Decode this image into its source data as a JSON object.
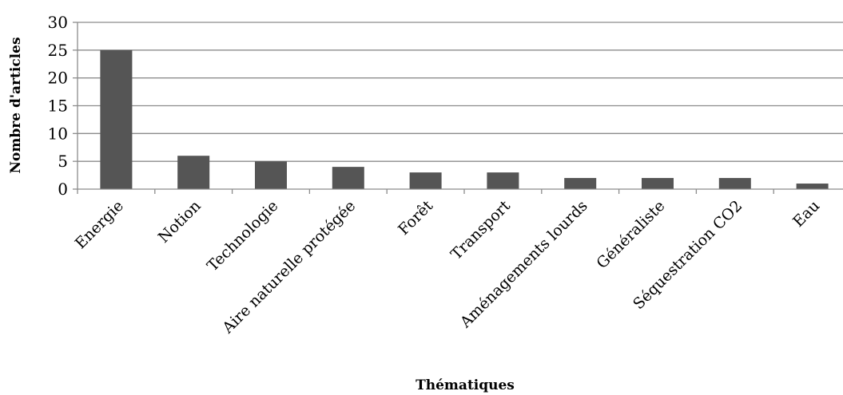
{
  "chart_data": {
    "type": "bar",
    "title": "",
    "xlabel": "Thématiques",
    "ylabel": "Nombre d'articles",
    "categories": [
      "Energie",
      "Notion",
      "Technologie",
      "Aire naturelle protégée",
      "Forêt",
      "Transport",
      "Aménagements lourds",
      "Généraliste",
      "Séquestration CO2",
      "Eau"
    ],
    "values": [
      25,
      6,
      5,
      4,
      3,
      3,
      2,
      2,
      2,
      1
    ],
    "ylim": [
      0,
      30
    ],
    "yticks": [
      0,
      5,
      10,
      15,
      20,
      25,
      30
    ],
    "grid": true,
    "legend": "none",
    "bar_color": "#555555",
    "grid_color": "#8c8c8c"
  }
}
